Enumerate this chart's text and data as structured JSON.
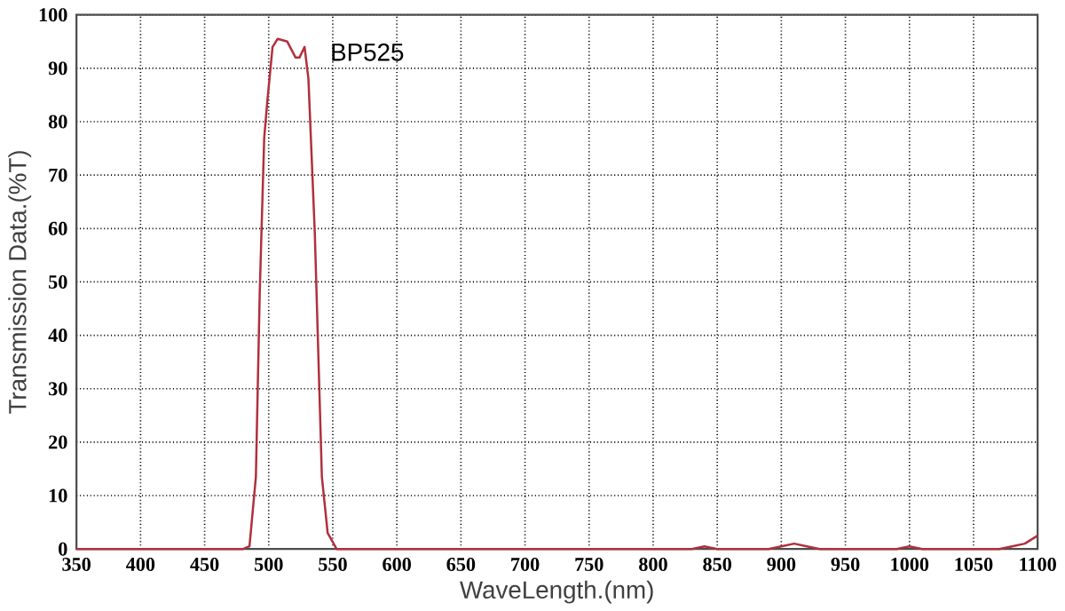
{
  "chart_data": {
    "type": "line",
    "xlabel": "WaveLength.(nm)",
    "ylabel": "Transmission Data.(%T)",
    "series": [
      {
        "color": "#b0303c",
        "x": [
          350,
          480,
          485,
          490,
          493,
          496.5,
          499,
          503,
          507,
          514.5,
          521,
          524,
          528,
          531,
          536,
          541.5,
          546,
          553,
          600,
          830,
          840,
          850,
          890,
          900,
          910,
          920,
          930,
          990,
          1000,
          1010,
          1070,
          1080,
          1090,
          1100
        ],
        "values": [
          0,
          0,
          0.5,
          13.5,
          48,
          77,
          84,
          94,
          95.5,
          95,
          92,
          92,
          94,
          88,
          59,
          13.5,
          3,
          0,
          0,
          0,
          0.5,
          0,
          0,
          0.5,
          1,
          0.5,
          0,
          0,
          0.5,
          0,
          0,
          0.5,
          1,
          2.5
        ]
      }
    ],
    "annotations": [
      "BP525"
    ],
    "xlim": [
      350,
      1100
    ],
    "ylim": [
      0,
      100
    ],
    "xticks": [
      350,
      400,
      450,
      500,
      550,
      600,
      650,
      700,
      750,
      800,
      850,
      900,
      950,
      1000,
      1050,
      1100
    ],
    "yticks": [
      0,
      10,
      20,
      30,
      40,
      50,
      60,
      70,
      80,
      90,
      100
    ],
    "grid": true,
    "marker": "none",
    "line_style": "solid"
  }
}
